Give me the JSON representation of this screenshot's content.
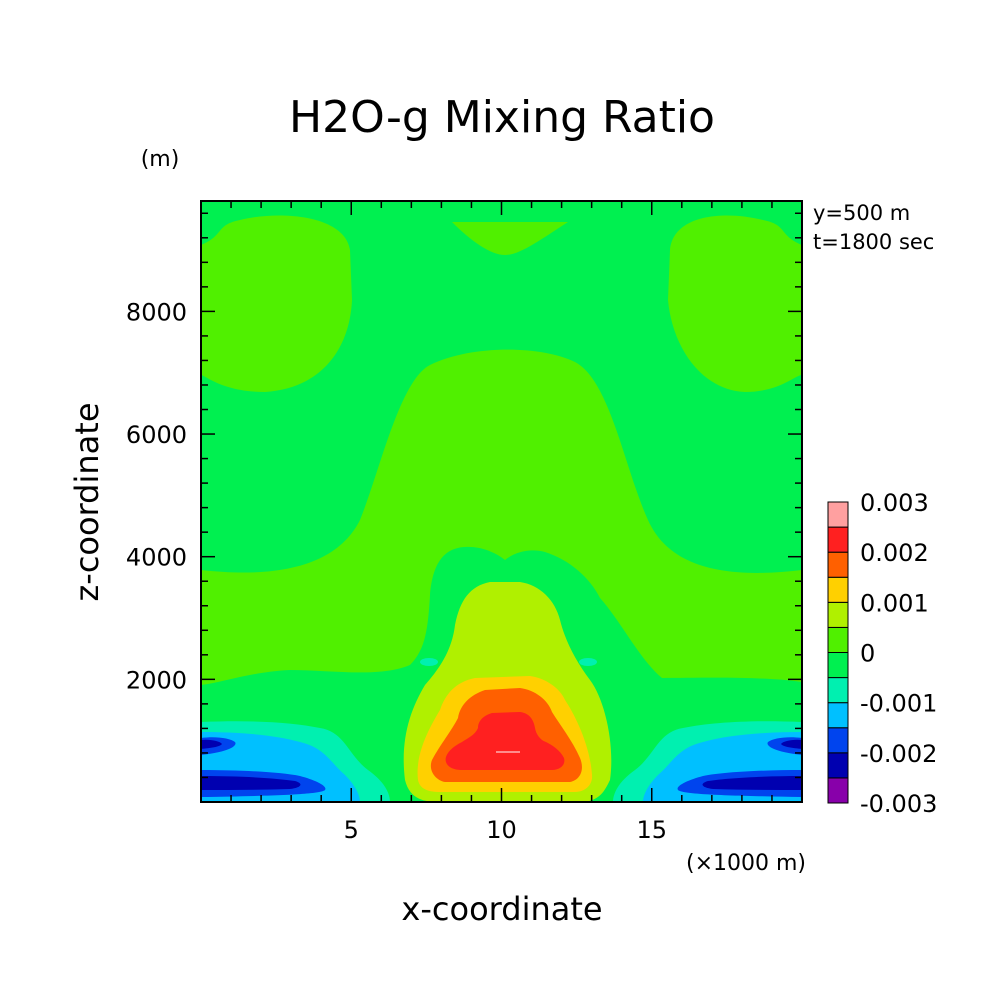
{
  "chart_data": {
    "type": "heatmap",
    "title": "H2O-g Mixing Ratio",
    "xlabel": "x-coordinate",
    "ylabel": "z-coordinate",
    "x_unit": "(×1000 m)",
    "y_unit": "(m)",
    "annotations": [
      "y=500 m",
      "t=1800 sec"
    ],
    "xlim": [
      0,
      20
    ],
    "ylim": [
      0,
      9800
    ],
    "x_ticks": [
      5,
      10,
      15
    ],
    "x_tick_labels": [
      "5",
      "10",
      "15"
    ],
    "y_ticks": [
      2000,
      4000,
      6000,
      8000
    ],
    "y_tick_labels": [
      "2000",
      "4000",
      "6000",
      "8000"
    ],
    "colorbar": {
      "levels": [
        -0.003,
        -0.0025,
        -0.002,
        -0.0015,
        -0.001,
        -0.0005,
        0,
        0.0005,
        0.001,
        0.0015,
        0.002,
        0.0025,
        0.003
      ],
      "labels": [
        "0.003",
        "0.002",
        "0.001",
        "0",
        "-0.001",
        "-0.002",
        "-0.003"
      ],
      "colors": [
        "#8800aa",
        "#0000b0",
        "#0044ee",
        "#00c0ff",
        "#00f0b0",
        "#00f050",
        "#50f000",
        "#b0f000",
        "#ffd000",
        "#ff6000",
        "#ff2020",
        "#ffa0a0"
      ]
    },
    "field_description": "positive moisture anomaly centered at x≈10 (×1000 m), z≈800 m; negative anomalies near the lateral boundaries below 1300 m"
  }
}
